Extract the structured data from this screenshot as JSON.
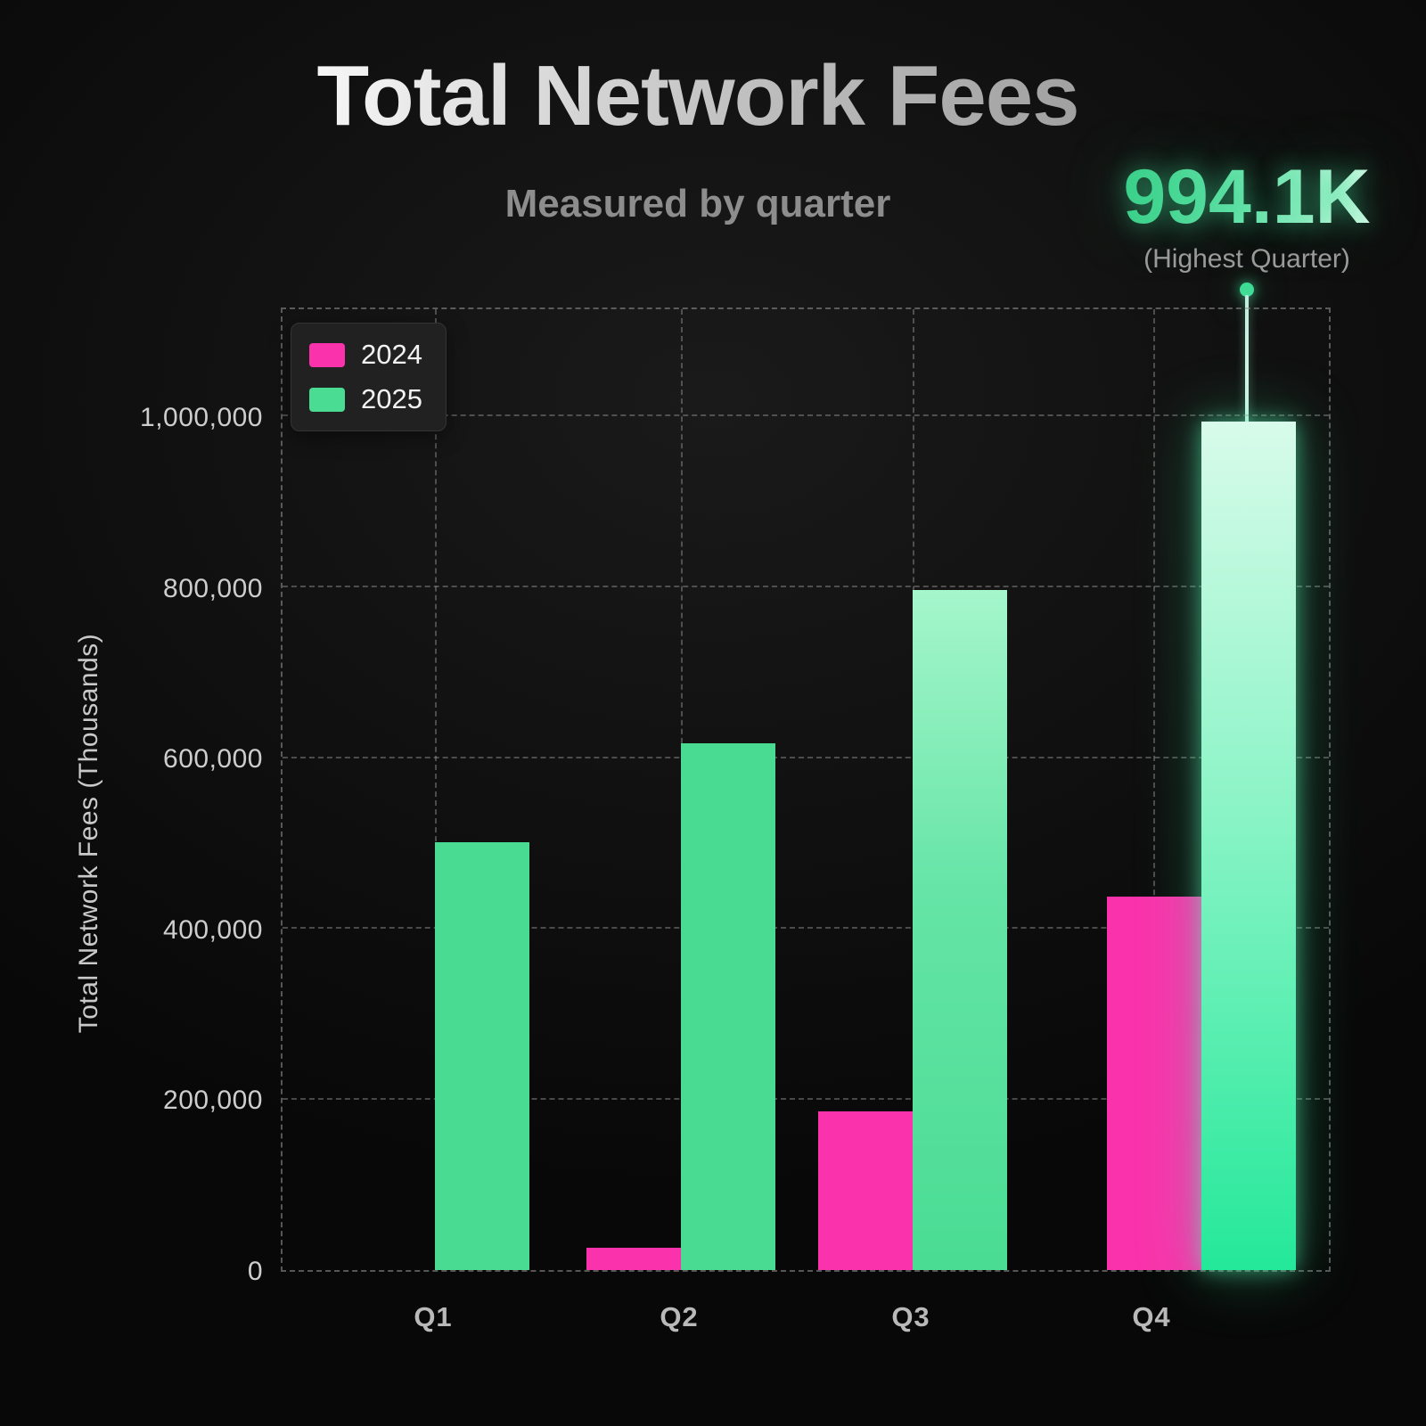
{
  "header": {
    "title": "Total Network Fees",
    "subtitle": "Measured by quarter"
  },
  "highlight": {
    "value": "994.1K",
    "caption": "(Highest Quarter)"
  },
  "legend": {
    "items": [
      {
        "label": "2024",
        "color": "#fa33ac"
      },
      {
        "label": "2025",
        "color": "#4bdc94"
      }
    ]
  },
  "y_axis": {
    "title": "Total Network Fees (Thousands)",
    "tick_labels": [
      "0",
      "200,000",
      "400,000",
      "600,000",
      "800,000",
      "1,000,000"
    ]
  },
  "x_axis": {
    "labels": [
      "Q1",
      "Q2",
      "Q3",
      "Q4"
    ]
  },
  "chart_data": {
    "type": "bar",
    "title": "Total Network Fees",
    "subtitle": "Measured by quarter",
    "categories": [
      "Q1",
      "Q2",
      "Q3",
      "Q4"
    ],
    "series": [
      {
        "name": "2024",
        "color": "#fa33ac",
        "values": [
          0,
          26000,
          186000,
          438000
        ]
      },
      {
        "name": "2025",
        "color": "#4bdc94",
        "values": [
          501000,
          617000,
          797000,
          994100
        ]
      }
    ],
    "xlabel": "",
    "ylabel": "Total Network Fees (Thousands)",
    "ylim": [
      0,
      1130000
    ],
    "yticks": [
      0,
      200000,
      400000,
      600000,
      800000,
      1000000
    ],
    "grid": "dashed",
    "legend_position": "top-left",
    "annotation": {
      "series": "2025",
      "category": "Q4",
      "label": "994.1K",
      "caption": "(Highest Quarter)"
    },
    "style": {
      "pink": "#fa33ac",
      "green": "#4bdc94",
      "green_q3_gradient_top": "#a5f6cb",
      "green_q4_gradient_top": "#d8fbea",
      "green_q4_gradient_bottom": "#24e89a",
      "glow": "#3edd96",
      "background": "#101010",
      "grid_color": "#969696"
    }
  }
}
